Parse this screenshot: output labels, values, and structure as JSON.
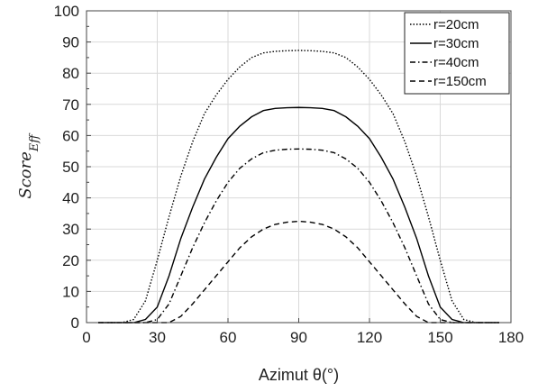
{
  "chart_data": {
    "type": "line",
    "xlabel": "Azimut θ(°)",
    "ylabel": "Score",
    "ylabel_subscript": "Eff",
    "xlim": [
      0,
      180
    ],
    "ylim": [
      0,
      100
    ],
    "xticks": [
      0,
      30,
      60,
      90,
      120,
      150,
      180
    ],
    "yticks": [
      0,
      10,
      20,
      30,
      40,
      50,
      60,
      70,
      80,
      90,
      100
    ],
    "grid": true,
    "legend_position": "top-right",
    "x": [
      5,
      10,
      15,
      20,
      25,
      30,
      35,
      40,
      45,
      50,
      55,
      60,
      65,
      70,
      75,
      80,
      85,
      90,
      95,
      100,
      105,
      110,
      115,
      120,
      125,
      130,
      135,
      140,
      145,
      150,
      155,
      160,
      165,
      170,
      175
    ],
    "series": [
      {
        "name": "r=20cm",
        "style": "dotted",
        "values": [
          0,
          0,
          0,
          1,
          7,
          20,
          34,
          47,
          58,
          67,
          73,
          78,
          82,
          85,
          86.5,
          87,
          87.2,
          87.3,
          87.2,
          87,
          86.5,
          85,
          82,
          78,
          73,
          67,
          58,
          47,
          34,
          20,
          7,
          1,
          0,
          0,
          0
        ]
      },
      {
        "name": "r=30cm",
        "style": "solid",
        "values": [
          0,
          0,
          0,
          0,
          1,
          5,
          15,
          27,
          37,
          46,
          53,
          59,
          63,
          66,
          68,
          68.7,
          68.9,
          69,
          68.9,
          68.7,
          68,
          66,
          63,
          59,
          53,
          46,
          37,
          27,
          15,
          5,
          1,
          0,
          0,
          0,
          0
        ]
      },
      {
        "name": "r=40cm",
        "style": "dashdot",
        "values": [
          0,
          0,
          0,
          0,
          0,
          1,
          6,
          15,
          24,
          32,
          39,
          45,
          49.5,
          52.5,
          54.5,
          55.3,
          55.6,
          55.7,
          55.6,
          55.3,
          54.5,
          52.5,
          49.5,
          45,
          39,
          32,
          24,
          15,
          6,
          1,
          0,
          0,
          0,
          0,
          0
        ]
      },
      {
        "name": "r=150cm",
        "style": "dashed",
        "values": [
          0,
          0,
          0,
          0,
          0,
          0,
          0,
          2,
          6,
          10.5,
          15,
          19.5,
          24,
          27.5,
          30,
          31.5,
          32.2,
          32.5,
          32.2,
          31.5,
          30,
          27.5,
          24,
          19.5,
          15,
          10.5,
          6,
          2,
          0,
          0,
          0,
          0,
          0,
          0,
          0
        ]
      }
    ]
  }
}
